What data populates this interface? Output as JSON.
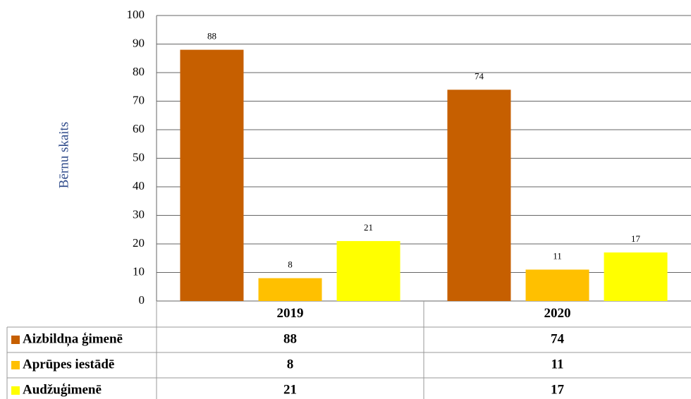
{
  "chart_data": {
    "type": "bar",
    "y_label": "Bērnu skaits",
    "categories": [
      "2019",
      "2020"
    ],
    "series": [
      {
        "name": "Aizbildņa ģimenē",
        "color": "#c65f00",
        "values": [
          88,
          74
        ]
      },
      {
        "name": "Aprūpes iestādē",
        "color": "#ffc000",
        "values": [
          8,
          11
        ]
      },
      {
        "name": "Audžuģimenē",
        "color": "#ffff00",
        "values": [
          21,
          17
        ]
      }
    ],
    "ylim": [
      0,
      100
    ],
    "yticks": [
      0,
      10,
      20,
      30,
      40,
      50,
      60,
      70,
      80,
      90,
      100
    ],
    "grid": true
  }
}
